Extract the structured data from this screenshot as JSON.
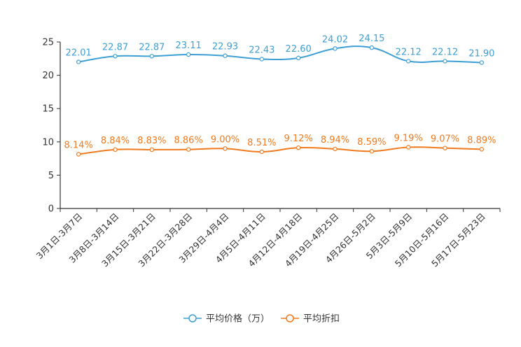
{
  "chart_data": {
    "type": "line",
    "title": "",
    "xlabel": "",
    "ylabel": "",
    "ylim": [
      0,
      25
    ],
    "yticks": [
      0,
      5,
      10,
      15,
      20,
      25
    ],
    "grid": false,
    "legend_position": "bottom-center",
    "categories": [
      "3月1日-3月7日",
      "3月8日-3月14日",
      "3月15日-3月21日",
      "3月22日-3月28日",
      "3月29日-4月4日",
      "4月5日-4月11日",
      "4月12日-4月18日",
      "4月19日-4月25日",
      "4月26日-5月2日",
      "5月3日-5月9日",
      "5月10日-5月16日",
      "5月17日-5月23日"
    ],
    "series": [
      {
        "name": "平均价格（万）",
        "color": "#3d9fd4",
        "values": [
          22.01,
          22.87,
          22.87,
          23.11,
          22.93,
          22.43,
          22.6,
          24.02,
          24.15,
          22.12,
          22.12,
          21.9
        ],
        "labels": [
          "22.01",
          "22.87",
          "22.87",
          "23.11",
          "22.93",
          "22.43",
          "22.60",
          "24.02",
          "24.15",
          "22.12",
          "22.12",
          "21.90"
        ]
      },
      {
        "name": "平均折扣",
        "color": "#f07a1e",
        "values": [
          8.14,
          8.84,
          8.83,
          8.86,
          9.0,
          8.51,
          9.12,
          8.94,
          8.59,
          9.19,
          9.07,
          8.89
        ],
        "labels": [
          "8.14%",
          "8.84%",
          "8.83%",
          "8.86%",
          "9.00%",
          "8.51%",
          "9.12%",
          "8.94%",
          "8.59%",
          "9.19%",
          "9.07%",
          "8.89%"
        ]
      }
    ]
  }
}
